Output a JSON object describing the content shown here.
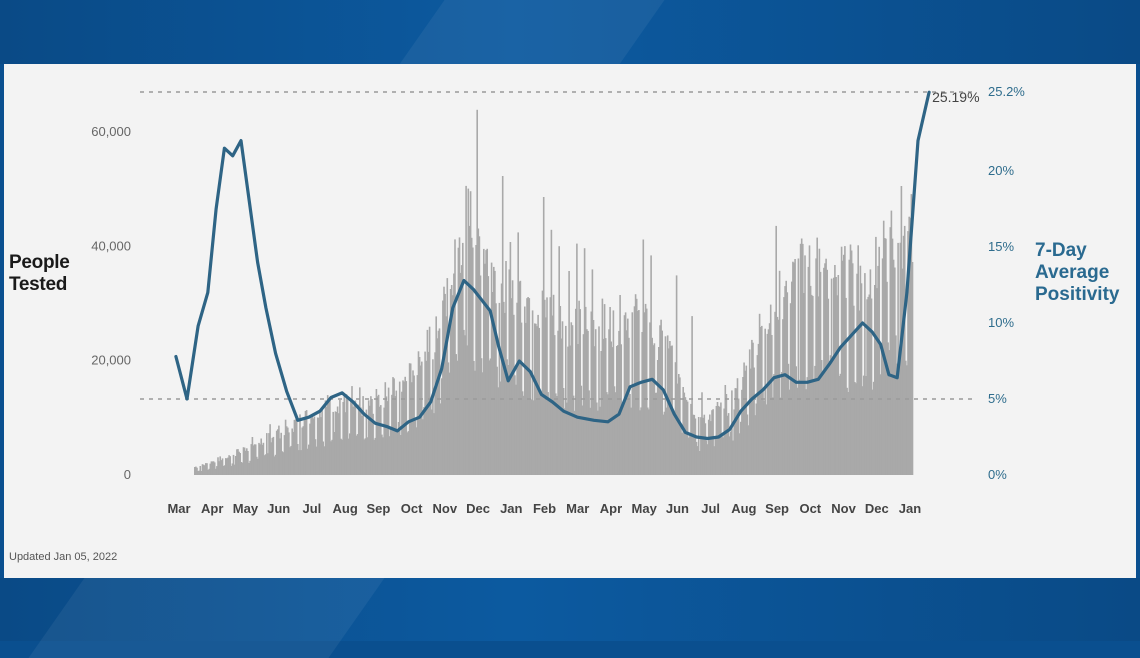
{
  "chart_data": {
    "type": "bar+line",
    "left_axis_title": [
      "People",
      "Tested"
    ],
    "right_axis_title": [
      "7-Day",
      "Average",
      "Positivity"
    ],
    "y_left": {
      "ticks": [
        "0",
        "20,000",
        "40,000",
        "60,000"
      ],
      "tick_values": [
        0,
        20000,
        40000,
        60000
      ],
      "range": [
        0,
        67000
      ]
    },
    "y_right": {
      "ticks": [
        "0%",
        "5%",
        "10%",
        "15%",
        "20%",
        "25.2%"
      ],
      "tick_values": [
        0,
        5,
        10,
        15,
        20,
        25.2
      ],
      "range": [
        0,
        25.2
      ]
    },
    "x_ticks": [
      "Mar",
      "Apr",
      "May",
      "Jun",
      "Jul",
      "Aug",
      "Sep",
      "Oct",
      "Nov",
      "Dec",
      "Jan",
      "Feb",
      "Mar",
      "Apr",
      "May",
      "Jun",
      "Jul",
      "Aug",
      "Sep",
      "Oct",
      "Nov",
      "Dec",
      "Jan"
    ],
    "reference_lines": [
      {
        "axis": "right",
        "value": 5
      },
      {
        "axis": "right",
        "value": 25.2
      }
    ],
    "annotation": "25.19%",
    "bars_name": "People Tested",
    "bars_monthly_avg": [
      500,
      1500,
      3500,
      6000,
      9000,
      12000,
      11000,
      15000,
      22000,
      42000,
      32000,
      28000,
      25000,
      24000,
      26000,
      21000,
      9000,
      12000,
      26000,
      33000,
      33000,
      31000,
      40000
    ],
    "bars_monthly_peak": [
      1000,
      3000,
      8000,
      10000,
      13000,
      16000,
      15000,
      20000,
      28000,
      67000,
      54000,
      50000,
      43000,
      38000,
      46000,
      35000,
      17000,
      18000,
      45000,
      45000,
      49000,
      40000,
      51000
    ],
    "line_name": "7-Day Average Positivity",
    "line_points": [
      [
        "Mar",
        7.8
      ],
      [
        "Mar",
        5.0
      ],
      [
        "Mar",
        9.8
      ],
      [
        "Apr",
        12.0
      ],
      [
        "Apr",
        17.5
      ],
      [
        "Apr",
        21.5
      ],
      [
        "Apr",
        21.0
      ],
      [
        "May",
        22.0
      ],
      [
        "May",
        18.0
      ],
      [
        "May",
        14.0
      ],
      [
        "May",
        11.0
      ],
      [
        "Jun",
        8.0
      ],
      [
        "Jun",
        5.5
      ],
      [
        "Jun",
        3.6
      ],
      [
        "Jul",
        3.8
      ],
      [
        "Jul",
        4.2
      ],
      [
        "Jul",
        5.1
      ],
      [
        "Aug",
        5.4
      ],
      [
        "Aug",
        4.8
      ],
      [
        "Aug",
        4.0
      ],
      [
        "Sep",
        3.4
      ],
      [
        "Sep",
        3.2
      ],
      [
        "Sep",
        2.9
      ],
      [
        "Oct",
        3.5
      ],
      [
        "Oct",
        3.8
      ],
      [
        "Oct",
        4.8
      ],
      [
        "Nov",
        7.0
      ],
      [
        "Nov",
        11.0
      ],
      [
        "Nov",
        12.8
      ],
      [
        "Dec",
        12.2
      ],
      [
        "Dec",
        11.5
      ],
      [
        "Dec",
        10.8
      ],
      [
        "Dec",
        8.5
      ],
      [
        "Jan",
        6.2
      ],
      [
        "Jan",
        7.5
      ],
      [
        "Jan",
        6.8
      ],
      [
        "Feb",
        5.3
      ],
      [
        "Feb",
        4.8
      ],
      [
        "Feb",
        4.2
      ],
      [
        "Mar",
        3.8
      ],
      [
        "Mar",
        3.6
      ],
      [
        "Apr",
        3.5
      ],
      [
        "Apr",
        4.0
      ],
      [
        "Apr",
        5.8
      ],
      [
        "May",
        6.1
      ],
      [
        "May",
        6.3
      ],
      [
        "May",
        5.6
      ],
      [
        "Jun",
        4.0
      ],
      [
        "Jun",
        2.8
      ],
      [
        "Jun",
        2.5
      ],
      [
        "Jul",
        2.4
      ],
      [
        "Jul",
        2.5
      ],
      [
        "Jul",
        3.0
      ],
      [
        "Aug",
        4.2
      ],
      [
        "Aug",
        5.0
      ],
      [
        "Aug",
        5.6
      ],
      [
        "Sep",
        6.4
      ],
      [
        "Sep",
        6.6
      ],
      [
        "Sep",
        6.1
      ],
      [
        "Oct",
        6.1
      ],
      [
        "Oct",
        6.3
      ],
      [
        "Oct",
        7.3
      ],
      [
        "Nov",
        8.4
      ],
      [
        "Nov",
        9.2
      ],
      [
        "Nov",
        10.0
      ],
      [
        "Dec",
        9.4
      ],
      [
        "Dec",
        8.6
      ],
      [
        "Dec",
        6.6
      ],
      [
        "Dec",
        6.4
      ],
      [
        "Jan",
        12.0
      ],
      [
        "Jan",
        22.0
      ],
      [
        "Jan",
        25.19
      ]
    ]
  },
  "footer": {
    "updated": "Updated Jan 05, 2022"
  },
  "colors": {
    "band": "#0a4f8f",
    "bars": "#a9a9a9",
    "line": "#2e6485",
    "right_axis_title": "#2a6a90"
  }
}
